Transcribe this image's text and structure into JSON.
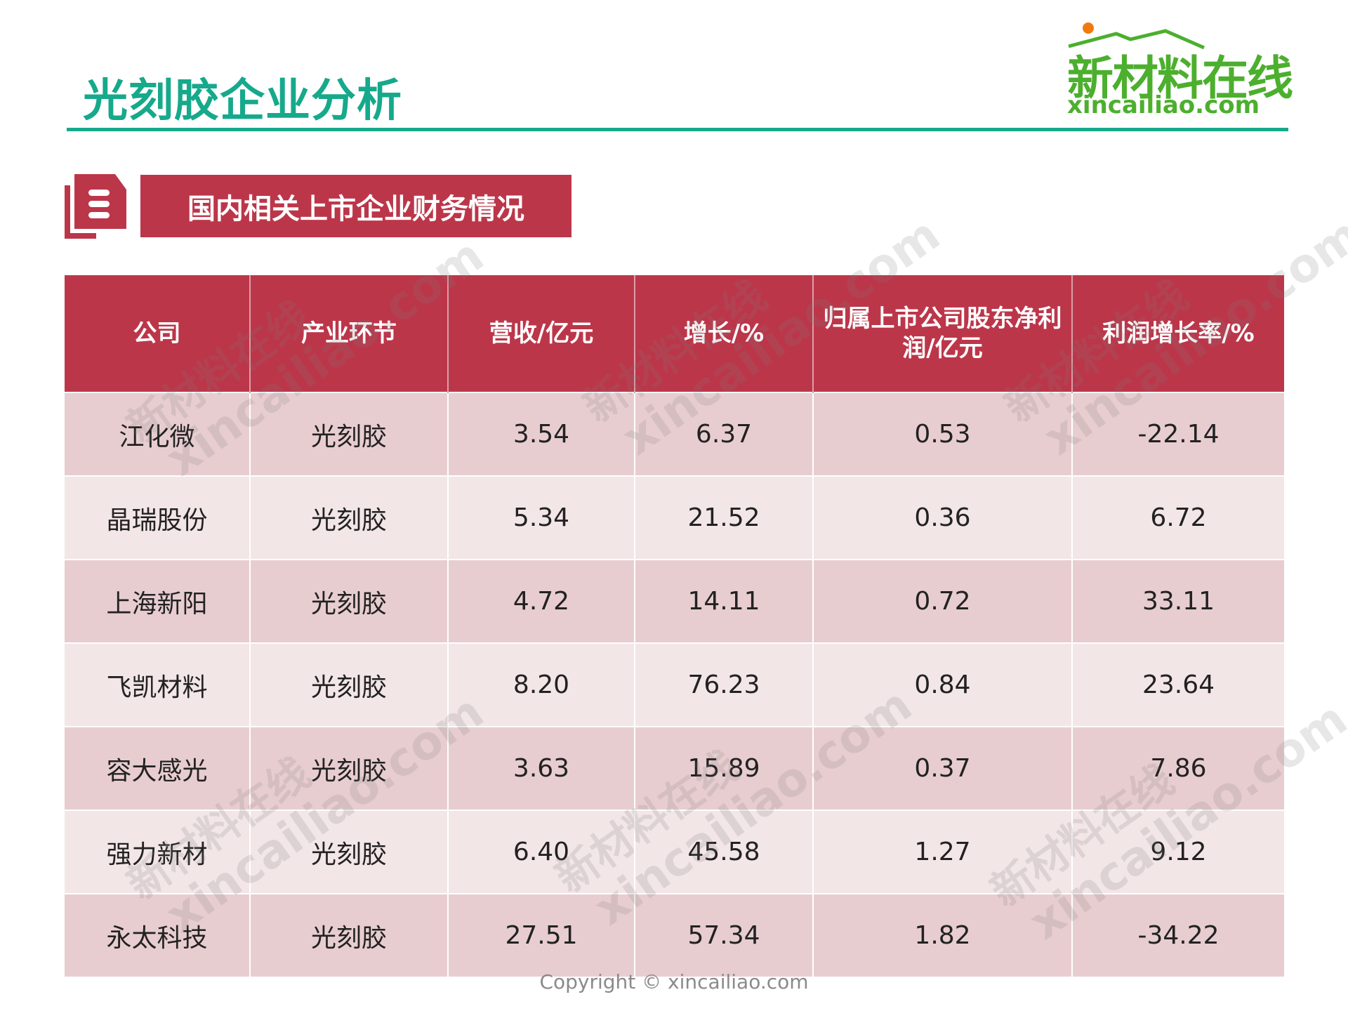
{
  "header": {
    "title": "光刻胶企业分析",
    "logo": {
      "cn": "新材料在线",
      "en": "xincailiao.com"
    }
  },
  "section": {
    "icon": "document-list-icon",
    "title": "国内相关上市企业财务情况"
  },
  "table": {
    "columns": [
      "公司",
      "产业环节",
      "营收/亿元",
      "增长/%",
      "归属上市公司股东净利润/亿元",
      "利润增长率/%"
    ],
    "rows": [
      [
        "江化微",
        "光刻胶",
        "3.54",
        "6.37",
        "0.53",
        "-22.14"
      ],
      [
        "晶瑞股份",
        "光刻胶",
        "5.34",
        "21.52",
        "0.36",
        "6.72"
      ],
      [
        "上海新阳",
        "光刻胶",
        "4.72",
        "14.11",
        "0.72",
        "33.11"
      ],
      [
        "飞凯材料",
        "光刻胶",
        "8.20",
        "76.23",
        "0.84",
        "23.64"
      ],
      [
        "容大感光",
        "光刻胶",
        "3.63",
        "15.89",
        "0.37",
        "7.86"
      ],
      [
        "强力新材",
        "光刻胶",
        "6.40",
        "45.58",
        "1.27",
        "9.12"
      ],
      [
        "永太科技",
        "光刻胶",
        "27.51",
        "57.34",
        "1.82",
        "-34.22"
      ]
    ]
  },
  "watermark": {
    "cn": "新材料在线",
    "en": "xincailiao.com"
  },
  "footer": {
    "copyright": "Copyright © xincailiao.com"
  },
  "colors": {
    "title_green": "#16a98b",
    "brand_red": "#bc364a",
    "row_dark": "#e8cdd0",
    "row_light": "#f3e6e7",
    "logo_green": "#4caf2e"
  }
}
